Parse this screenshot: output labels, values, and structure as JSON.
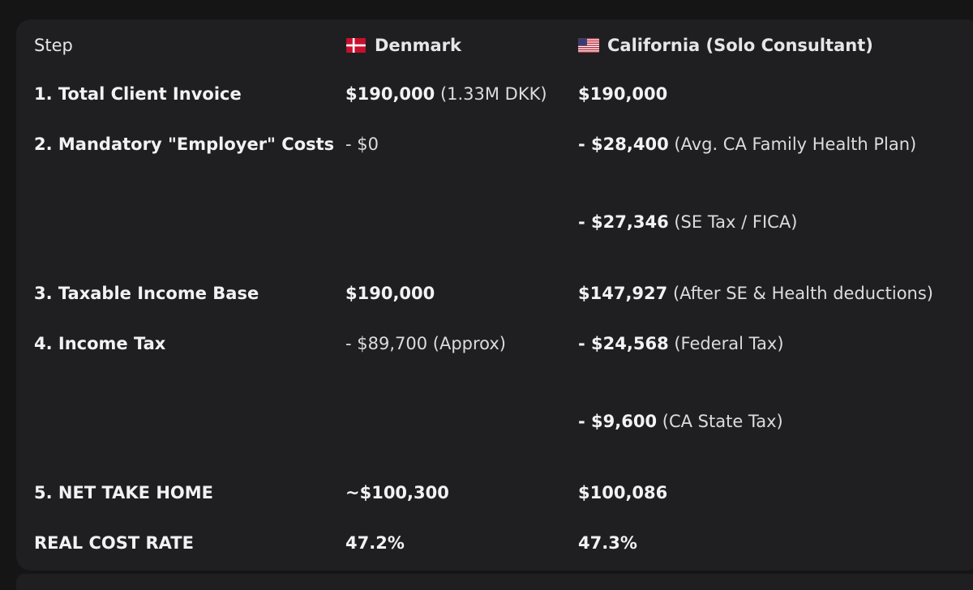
{
  "header": {
    "step": "Step",
    "denmark": "Denmark",
    "california": "California (Solo Consultant)"
  },
  "rows": [
    {
      "step": "1. Total Client Invoice",
      "dk": {
        "bold": "$190,000",
        "note": " (1.33M DKK)"
      },
      "ca": [
        {
          "bold": "$190,000",
          "note": ""
        }
      ]
    },
    {
      "step": "2. Mandatory \"Employer\" Costs",
      "dk": {
        "bold": "",
        "note": "- $0"
      },
      "ca": [
        {
          "bold": "- $28,400",
          "note": " (Avg. CA Family Health Plan)"
        },
        {
          "bold": "- $27,346",
          "note": " (SE Tax / FICA)"
        }
      ]
    },
    {
      "step": "3. Taxable Income Base",
      "dk": {
        "bold": "$190,000",
        "note": ""
      },
      "ca": [
        {
          "bold": "$147,927",
          "note": " (After SE & Health deductions)"
        }
      ]
    },
    {
      "step": "4. Income Tax",
      "dk": {
        "bold": "",
        "note": "- $89,700 (Approx)"
      },
      "ca": [
        {
          "bold": "- $24,568",
          "note": " (Federal Tax)"
        },
        {
          "bold": "- $9,600",
          "note": " (CA State Tax)"
        }
      ]
    },
    {
      "step": "5. NET TAKE HOME",
      "dk": {
        "bold": "~$100,300",
        "note": ""
      },
      "ca": [
        {
          "bold": "$100,086",
          "note": ""
        }
      ]
    },
    {
      "step": "REAL COST RATE",
      "dk": {
        "bold": "47.2%",
        "note": ""
      },
      "ca": [
        {
          "bold": "47.3%",
          "note": ""
        }
      ]
    }
  ],
  "colors": {
    "page_bg": "#151516",
    "card_bg": "#1f1f21",
    "text": "#f2f2f4"
  },
  "icons": {
    "denmark": "denmark-flag-icon",
    "usa": "usa-flag-icon"
  }
}
